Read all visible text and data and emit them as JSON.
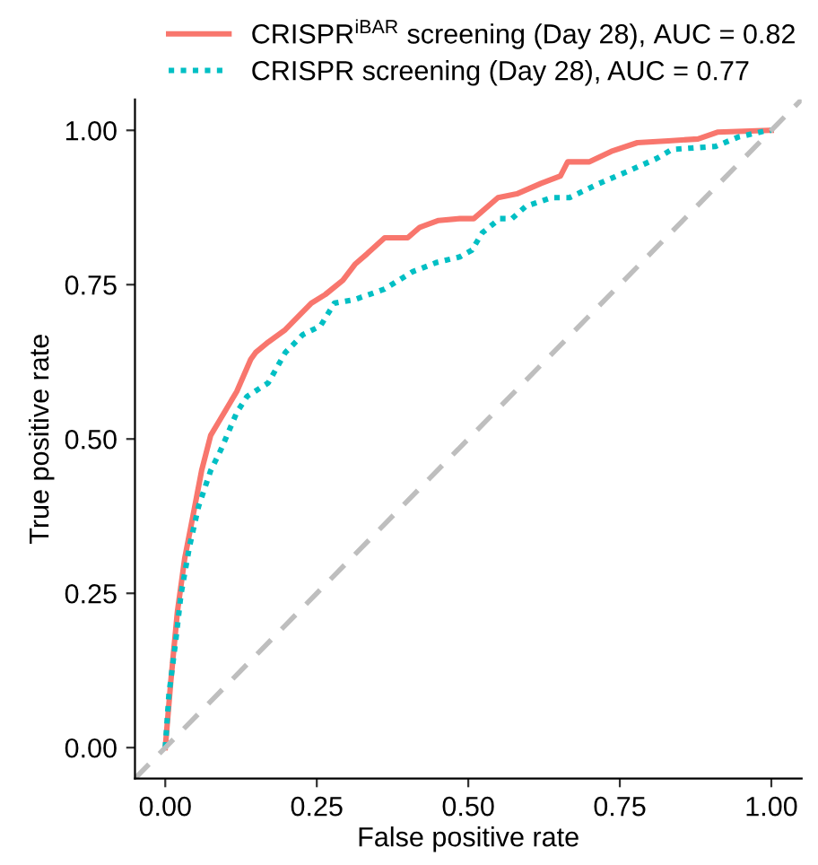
{
  "chart_data": {
    "type": "line",
    "xlabel": "False positive rate",
    "ylabel": "True positive rate",
    "xlim": [
      -0.05,
      1.05
    ],
    "ylim": [
      -0.05,
      1.05
    ],
    "xticks": [
      {
        "value": 0,
        "label": "0.00"
      },
      {
        "value": 0.25,
        "label": "0.25"
      },
      {
        "value": 0.5,
        "label": "0.50"
      },
      {
        "value": 0.75,
        "label": "0.75"
      },
      {
        "value": 1,
        "label": "1.00"
      }
    ],
    "yticks": [
      {
        "value": 0,
        "label": "0.00"
      },
      {
        "value": 0.25,
        "label": "0.25"
      },
      {
        "value": 0.5,
        "label": "0.50"
      },
      {
        "value": 0.75,
        "label": "0.75"
      },
      {
        "value": 1,
        "label": "1.00"
      }
    ],
    "grid": false,
    "legend": "top",
    "marker": "none",
    "series": [
      {
        "name": "CRISPR$^{iBAR}$ screening (Day 28), AUC = 0.82",
        "color": "#f8766d",
        "line_style": "solid",
        "x": [
          0,
          0.009,
          0.02,
          0.032,
          0.046,
          0.06,
          0.075,
          0.089,
          0.118,
          0.141,
          0.149,
          0.17,
          0.198,
          0.218,
          0.241,
          0.264,
          0.293,
          0.313,
          0.333,
          0.362,
          0.4,
          0.42,
          0.451,
          0.486,
          0.509,
          0.549,
          0.58,
          0.62,
          0.652,
          0.664,
          0.7,
          0.736,
          0.779,
          0.83,
          0.879,
          0.911,
          0.997,
          1
        ],
        "values": [
          0,
          0.106,
          0.22,
          0.306,
          0.377,
          0.449,
          0.506,
          0.529,
          0.577,
          0.629,
          0.64,
          0.657,
          0.677,
          0.697,
          0.72,
          0.734,
          0.757,
          0.783,
          0.8,
          0.826,
          0.826,
          0.843,
          0.854,
          0.857,
          0.857,
          0.891,
          0.897,
          0.914,
          0.926,
          0.949,
          0.949,
          0.966,
          0.98,
          0.983,
          0.986,
          0.997,
          1.0,
          1
        ]
      },
      {
        "name": "CRISPR screening (Day 28), AUC = 0.77",
        "color": "#00bfc4",
        "line_style": "dotted",
        "x": [
          0,
          0.006,
          0.017,
          0.026,
          0.04,
          0.055,
          0.075,
          0.092,
          0.118,
          0.135,
          0.17,
          0.198,
          0.227,
          0.256,
          0.279,
          0.313,
          0.362,
          0.408,
          0.448,
          0.486,
          0.506,
          0.523,
          0.552,
          0.572,
          0.595,
          0.638,
          0.667,
          0.716,
          0.764,
          0.81,
          0.836,
          0.908,
          0.945,
          0.994,
          1
        ],
        "values": [
          0,
          0.086,
          0.171,
          0.249,
          0.326,
          0.391,
          0.449,
          0.483,
          0.543,
          0.569,
          0.591,
          0.64,
          0.669,
          0.683,
          0.72,
          0.726,
          0.743,
          0.771,
          0.786,
          0.795,
          0.806,
          0.834,
          0.857,
          0.857,
          0.877,
          0.891,
          0.891,
          0.914,
          0.934,
          0.954,
          0.969,
          0.974,
          0.989,
          1.0,
          1
        ]
      },
      {
        "color": "#bebebe",
        "line_style": "dashed",
        "x": [
          -0.05,
          1.05
        ],
        "values": [
          -0.05,
          1.05
        ]
      }
    ]
  }
}
